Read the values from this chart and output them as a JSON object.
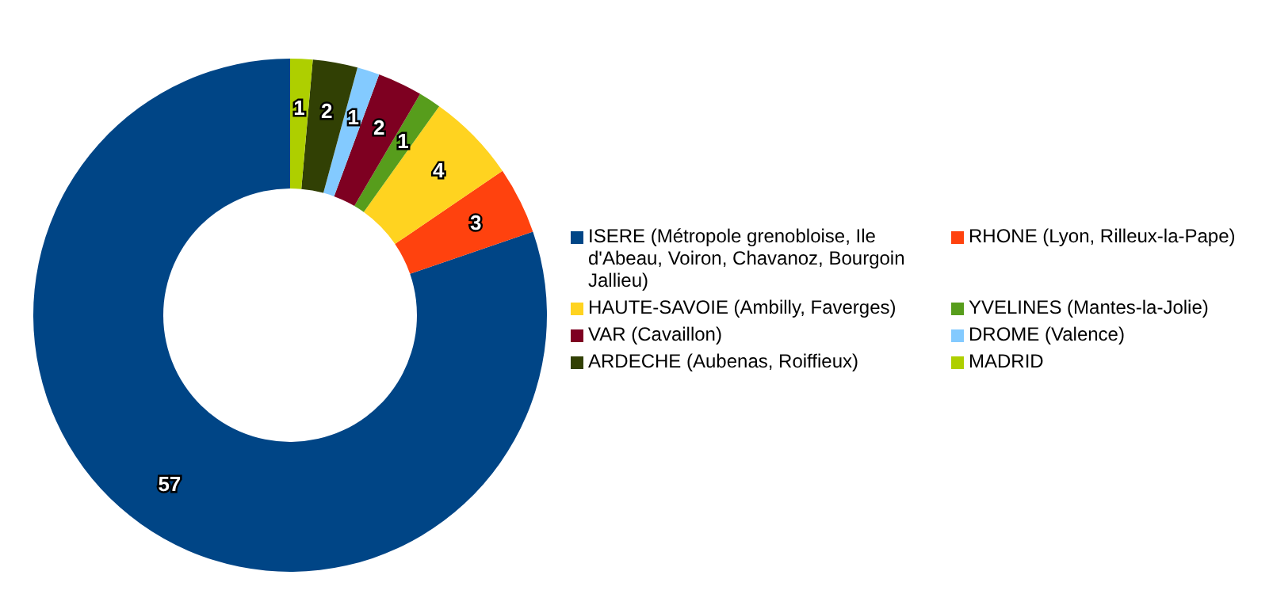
{
  "chart_data": {
    "type": "donut",
    "categories": [
      "ISERE (Métropole grenobloise, Ile d'Abeau, Voiron, Chavanoz, Bourgoin Jallieu)",
      "RHONE (Lyon, Rilleux-la-Pape)",
      "HAUTE-SAVOIE (Ambilly, Faverges)",
      "YVELINES (Mantes-la-Jolie)",
      "VAR (Cavaillon)",
      "DROME (Valence)",
      "ARDECHE (Aubenas, Roiffieux)",
      "MADRID"
    ],
    "values": [
      57,
      3,
      4,
      1,
      2,
      1,
      2,
      1
    ],
    "colors": [
      "#004586",
      "#ff420e",
      "#ffd320",
      "#579d1c",
      "#7e0021",
      "#83caff",
      "#314004",
      "#aecf00"
    ],
    "data_labels": true,
    "legend": "right"
  }
}
